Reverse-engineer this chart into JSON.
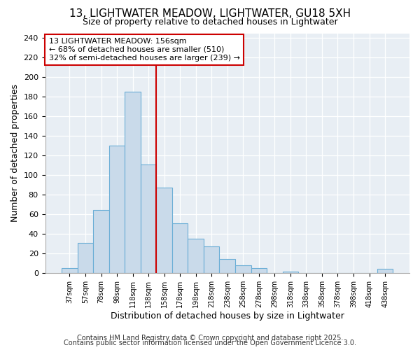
{
  "title1": "13, LIGHTWATER MEADOW, LIGHTWATER, GU18 5XH",
  "title2": "Size of property relative to detached houses in Lightwater",
  "xlabel": "Distribution of detached houses by size in Lightwater",
  "ylabel": "Number of detached properties",
  "bar_labels": [
    "37sqm",
    "57sqm",
    "78sqm",
    "98sqm",
    "118sqm",
    "138sqm",
    "158sqm",
    "178sqm",
    "198sqm",
    "218sqm",
    "238sqm",
    "258sqm",
    "278sqm",
    "298sqm",
    "318sqm",
    "338sqm",
    "358sqm",
    "378sqm",
    "398sqm",
    "418sqm",
    "438sqm"
  ],
  "bar_values": [
    5,
    31,
    64,
    130,
    185,
    111,
    87,
    51,
    35,
    27,
    14,
    8,
    5,
    0,
    1,
    0,
    0,
    0,
    0,
    0,
    4
  ],
  "bar_color": "#c9daea",
  "bar_edgecolor": "#6baed6",
  "vline_color": "#cc0000",
  "vline_index": 5.5,
  "annotation_line1": "13 LIGHTWATER MEADOW: 156sqm",
  "annotation_line2": "← 68% of detached houses are smaller (510)",
  "annotation_line3": "32% of semi-detached houses are larger (239) →",
  "annotation_box_edgecolor": "#cc0000",
  "ylim": [
    0,
    245
  ],
  "yticks": [
    0,
    20,
    40,
    60,
    80,
    100,
    120,
    140,
    160,
    180,
    200,
    220,
    240
  ],
  "footer1": "Contains HM Land Registry data © Crown copyright and database right 2025.",
  "footer2": "Contains public sector information licensed under the Open Government Licence 3.0.",
  "fig_facecolor": "#ffffff",
  "plot_facecolor": "#e8eef4",
  "title1_fontsize": 11,
  "title2_fontsize": 9,
  "xlabel_fontsize": 9,
  "ylabel_fontsize": 9,
  "xtick_fontsize": 7,
  "ytick_fontsize": 8,
  "annot_fontsize": 8,
  "footer_fontsize": 7
}
